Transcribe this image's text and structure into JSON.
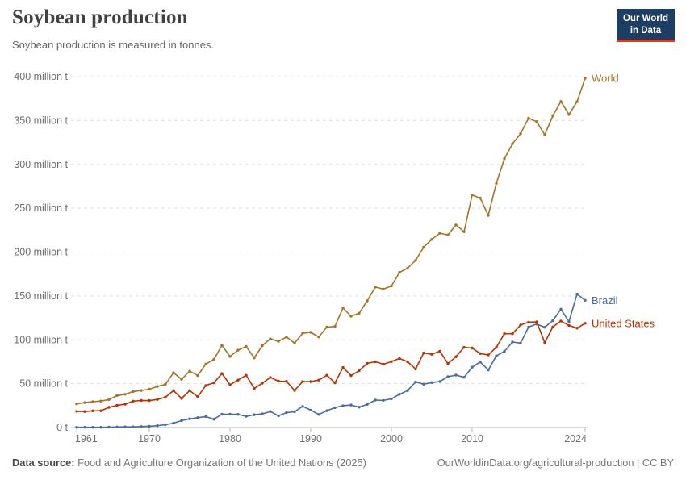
{
  "header": {
    "title": "Soybean production",
    "subtitle": "Soybean production is measured in tonnes.",
    "logo": {
      "line1": "Our World",
      "line2": "in Data",
      "bg_color": "#1d3d63",
      "accent_color": "#e5362a"
    }
  },
  "footer": {
    "source_label": "Data source:",
    "source_text": "Food and Agriculture Organization of the United Nations (2025)",
    "link_text": "OurWorldinData.org/agricultural-production | CC BY"
  },
  "chart_data": {
    "type": "line",
    "title": "Soybean production",
    "subtitle": "Soybean production is measured in tonnes.",
    "unit": "tonnes",
    "xlabel": "",
    "ylabel": "",
    "xlim": [
      1961,
      2024
    ],
    "ylim": [
      0,
      400
    ],
    "grid": "horizontal-dashed",
    "legend_position": "end-of-line-labels",
    "axis_colors": {
      "grid": "#e0e0e0",
      "zero_line": "#b5b5b5",
      "tick": "#b5b5b5",
      "tick_label": "#6e6e6e"
    },
    "x": [
      1961,
      1962,
      1963,
      1964,
      1965,
      1966,
      1967,
      1968,
      1969,
      1970,
      1971,
      1972,
      1973,
      1974,
      1975,
      1976,
      1977,
      1978,
      1979,
      1980,
      1981,
      1982,
      1983,
      1984,
      1985,
      1986,
      1987,
      1988,
      1989,
      1990,
      1991,
      1992,
      1993,
      1994,
      1995,
      1996,
      1997,
      1998,
      1999,
      2000,
      2001,
      2002,
      2003,
      2004,
      2005,
      2006,
      2007,
      2008,
      2009,
      2010,
      2011,
      2012,
      2013,
      2014,
      2015,
      2016,
      2017,
      2018,
      2019,
      2020,
      2021,
      2022,
      2023,
      2024
    ],
    "series": [
      {
        "name": "World",
        "color": "#a2732b",
        "values": [
          26.9,
          28.4,
          29.4,
          30.2,
          31.8,
          36.4,
          37.9,
          41.0,
          42.2,
          43.7,
          46.8,
          49.2,
          62.4,
          54.9,
          64.3,
          59.2,
          72.4,
          77.6,
          93.7,
          81.0,
          88.2,
          92.4,
          79.4,
          93.3,
          101.2,
          98.2,
          103.2,
          96.2,
          107.4,
          108.5,
          103.3,
          114.5,
          115.2,
          136.4,
          126.9,
          130.3,
          144.4,
          160.1,
          157.8,
          161.3,
          176.8,
          181.6,
          190.6,
          205.5,
          214.5,
          221.5,
          219.6,
          231.0,
          223.2,
          265.0,
          261.6,
          241.8,
          278.4,
          306.5,
          323.4,
          335.0,
          352.7,
          348.7,
          333.8,
          355.4,
          371.7,
          356.9,
          371.4,
          398.2
        ]
      },
      {
        "name": "Brazil",
        "color": "#4c6a9c",
        "values": [
          0.3,
          0.3,
          0.3,
          0.3,
          0.5,
          0.6,
          0.7,
          0.7,
          1.1,
          1.5,
          2.1,
          3.2,
          5.0,
          7.9,
          9.9,
          11.2,
          12.5,
          9.5,
          15.2,
          15.2,
          15.0,
          12.8,
          14.6,
          15.5,
          18.3,
          13.3,
          17.0,
          18.0,
          24.1,
          19.9,
          14.9,
          19.2,
          22.6,
          24.9,
          25.7,
          23.2,
          26.4,
          31.3,
          30.9,
          32.7,
          37.9,
          42.1,
          51.9,
          49.5,
          51.2,
          52.5,
          57.9,
          59.8,
          57.3,
          68.8,
          74.8,
          65.7,
          81.7,
          86.8,
          97.5,
          96.3,
          114.6,
          117.9,
          114.3,
          121.8,
          134.9,
          120.7,
          152.1,
          145.0
        ]
      },
      {
        "name": "United States",
        "color": "#b13507",
        "values": [
          18.5,
          18.2,
          19.0,
          19.1,
          23.0,
          25.3,
          26.6,
          30.1,
          30.8,
          30.7,
          32.0,
          34.6,
          42.1,
          33.1,
          42.1,
          35.1,
          47.9,
          50.9,
          61.5,
          48.8,
          54.1,
          59.6,
          44.5,
          50.6,
          57.1,
          52.9,
          52.7,
          42.2,
          52.4,
          52.4,
          54.1,
          59.6,
          50.9,
          68.4,
          59.2,
          64.8,
          73.2,
          75.0,
          72.2,
          75.1,
          78.7,
          75.0,
          66.8,
          85.0,
          83.5,
          87.0,
          72.9,
          80.7,
          91.4,
          90.6,
          84.3,
          82.8,
          91.4,
          106.9,
          106.9,
          116.9,
          120.1,
          120.5,
          96.7,
          114.7,
          121.5,
          116.4,
          113.3,
          118.8
        ]
      }
    ],
    "yticks": [
      {
        "value": 0,
        "label": "0 t"
      },
      {
        "value": 50,
        "label": "50 million t"
      },
      {
        "value": 100,
        "label": "100 million t"
      },
      {
        "value": 150,
        "label": "150 million t"
      },
      {
        "value": 200,
        "label": "200 million t"
      },
      {
        "value": 250,
        "label": "250 million t"
      },
      {
        "value": 300,
        "label": "300 million t"
      },
      {
        "value": 350,
        "label": "350 million t"
      },
      {
        "value": 400,
        "label": "400 million t"
      }
    ],
    "xticks": [
      {
        "value": 1961,
        "label": "1961"
      },
      {
        "value": 1970,
        "label": "1970"
      },
      {
        "value": 1980,
        "label": "1980"
      },
      {
        "value": 1990,
        "label": "1990"
      },
      {
        "value": 2000,
        "label": "2000"
      },
      {
        "value": 2010,
        "label": "2010"
      },
      {
        "value": 2024,
        "label": "2024"
      }
    ]
  }
}
